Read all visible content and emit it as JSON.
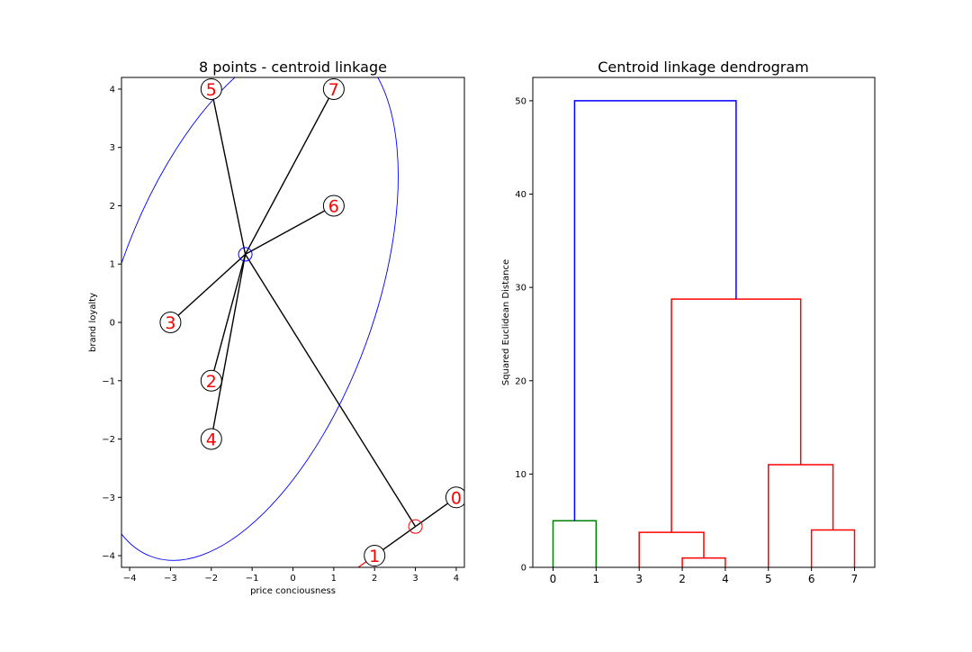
{
  "chart_data": [
    {
      "type": "scatter",
      "title": "8 points - centroid linkage",
      "xlabel": "price conciousness",
      "ylabel": "brand loyalty",
      "xlim": [
        -4.2,
        4.2
      ],
      "ylim": [
        -4.2,
        4.2
      ],
      "xticks": [
        -4,
        -3,
        -2,
        -1,
        0,
        1,
        2,
        3,
        4
      ],
      "yticks": [
        -4,
        -3,
        -2,
        -1,
        0,
        1,
        2,
        3,
        4
      ],
      "grid": false,
      "points": [
        {
          "label": "0",
          "x": 4,
          "y": -3
        },
        {
          "label": "1",
          "x": 2,
          "y": -4
        },
        {
          "label": "2",
          "x": -2,
          "y": -1
        },
        {
          "label": "3",
          "x": -3,
          "y": 0
        },
        {
          "label": "4",
          "x": -2,
          "y": -2
        },
        {
          "label": "5",
          "x": -2,
          "y": 4
        },
        {
          "label": "6",
          "x": 1,
          "y": 2
        },
        {
          "label": "7",
          "x": 1,
          "y": 4
        }
      ],
      "clusters": [
        {
          "color": "#0000ff",
          "centroid": [
            -1.167,
            1.167
          ],
          "members": [
            "2",
            "3",
            "4",
            "5",
            "6",
            "7"
          ],
          "ellipse": {
            "center": [
              -1.167,
              0.4
            ],
            "rx": 3.15,
            "ry": 4.7,
            "rotation_deg": 20
          }
        },
        {
          "color": "#ff0000",
          "centroid": [
            3,
            -3.5
          ],
          "members": [
            "0",
            "1"
          ]
        }
      ],
      "centroid_link": {
        "from": [
          -1.167,
          1.167
        ],
        "to": [
          3,
          -3.5
        ],
        "color": "#000000"
      },
      "point_label_color": "#ff0000",
      "point_marker_color": "#000000"
    },
    {
      "type": "dendrogram",
      "title": "Centroid linkage dendrogram",
      "xlabel": "",
      "ylabel": "Squared Euclidean Distance",
      "ylim": [
        0,
        52.5
      ],
      "yticks": [
        0,
        10,
        20,
        30,
        40,
        50
      ],
      "leaves": [
        "0",
        "1",
        "3",
        "2",
        "4",
        "5",
        "6",
        "7"
      ],
      "merges": [
        {
          "left": 0,
          "right": 1,
          "height": 5.0,
          "color": "#008000"
        },
        {
          "left": 3,
          "right": 4,
          "height": 1.0,
          "color": "#ff0000"
        },
        {
          "left": 2,
          "right": 3.5,
          "height": 3.75,
          "color": "#ff0000"
        },
        {
          "left": 6,
          "right": 7,
          "height": 4.0,
          "color": "#ff0000"
        },
        {
          "left": 5,
          "right": 6.5,
          "height": 11.0,
          "color": "#ff0000"
        },
        {
          "left": 2.75,
          "right": 5.75,
          "height": 28.75,
          "color": "#ff0000"
        },
        {
          "left": 0.5,
          "right": 4.25,
          "height": 50.0,
          "color": "#0000ff"
        }
      ]
    }
  ]
}
